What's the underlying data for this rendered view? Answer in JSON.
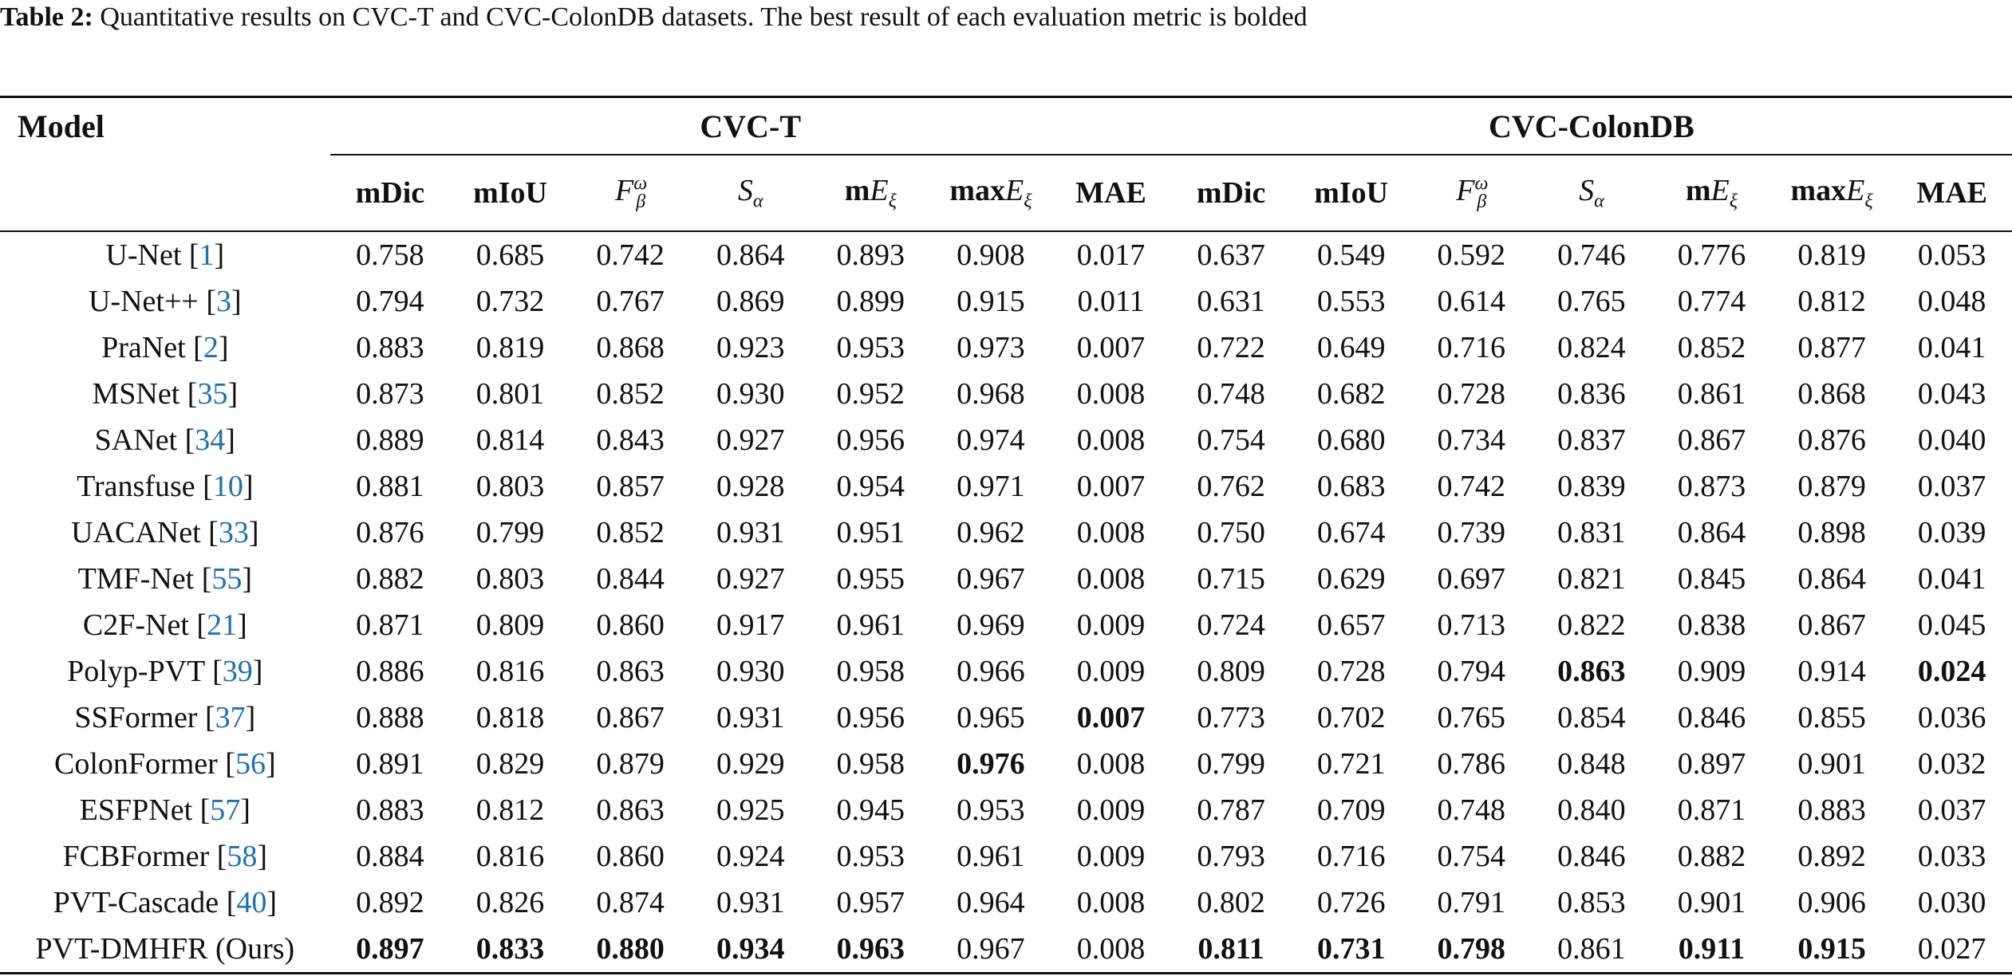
{
  "caption": {
    "label": "Table 2:",
    "text": "Quantitative results on CVC-T and CVC-ColonDB datasets. The best result of each evaluation metric is bolded"
  },
  "header": {
    "model": "Model",
    "group_a": "CVC-T",
    "group_b": "CVC-ColonDB",
    "metrics": [
      "mDic",
      "mIoU",
      "F_β^ω",
      "S_α",
      "mE_ξ",
      "maxE_ξ",
      "MAE"
    ]
  },
  "rows": [
    {
      "name": "U-Net",
      "ref": "1",
      "values": [
        "0.758",
        "0.685",
        "0.742",
        "0.864",
        "0.893",
        "0.908",
        "0.017",
        "0.637",
        "0.549",
        "0.592",
        "0.746",
        "0.776",
        "0.819",
        "0.053"
      ],
      "bold": []
    },
    {
      "name": "U-Net++",
      "ref": "3",
      "values": [
        "0.794",
        "0.732",
        "0.767",
        "0.869",
        "0.899",
        "0.915",
        "0.011",
        "0.631",
        "0.553",
        "0.614",
        "0.765",
        "0.774",
        "0.812",
        "0.048"
      ],
      "bold": []
    },
    {
      "name": "PraNet",
      "ref": "2",
      "values": [
        "0.883",
        "0.819",
        "0.868",
        "0.923",
        "0.953",
        "0.973",
        "0.007",
        "0.722",
        "0.649",
        "0.716",
        "0.824",
        "0.852",
        "0.877",
        "0.041"
      ],
      "bold": []
    },
    {
      "name": "MSNet",
      "ref": "35",
      "values": [
        "0.873",
        "0.801",
        "0.852",
        "0.930",
        "0.952",
        "0.968",
        "0.008",
        "0.748",
        "0.682",
        "0.728",
        "0.836",
        "0.861",
        "0.868",
        "0.043"
      ],
      "bold": []
    },
    {
      "name": "SANet",
      "ref": "34",
      "values": [
        "0.889",
        "0.814",
        "0.843",
        "0.927",
        "0.956",
        "0.974",
        "0.008",
        "0.754",
        "0.680",
        "0.734",
        "0.837",
        "0.867",
        "0.876",
        "0.040"
      ],
      "bold": []
    },
    {
      "name": "Transfuse",
      "ref": "10",
      "values": [
        "0.881",
        "0.803",
        "0.857",
        "0.928",
        "0.954",
        "0.971",
        "0.007",
        "0.762",
        "0.683",
        "0.742",
        "0.839",
        "0.873",
        "0.879",
        "0.037"
      ],
      "bold": []
    },
    {
      "name": "UACANet",
      "ref": "33",
      "values": [
        "0.876",
        "0.799",
        "0.852",
        "0.931",
        "0.951",
        "0.962",
        "0.008",
        "0.750",
        "0.674",
        "0.739",
        "0.831",
        "0.864",
        "0.898",
        "0.039"
      ],
      "bold": []
    },
    {
      "name": "TMF-Net",
      "ref": "55",
      "values": [
        "0.882",
        "0.803",
        "0.844",
        "0.927",
        "0.955",
        "0.967",
        "0.008",
        "0.715",
        "0.629",
        "0.697",
        "0.821",
        "0.845",
        "0.864",
        "0.041"
      ],
      "bold": []
    },
    {
      "name": "C2F-Net",
      "ref": "21",
      "values": [
        "0.871",
        "0.809",
        "0.860",
        "0.917",
        "0.961",
        "0.969",
        "0.009",
        "0.724",
        "0.657",
        "0.713",
        "0.822",
        "0.838",
        "0.867",
        "0.045"
      ],
      "bold": []
    },
    {
      "name": "Polyp-PVT",
      "ref": "39",
      "values": [
        "0.886",
        "0.816",
        "0.863",
        "0.930",
        "0.958",
        "0.966",
        "0.009",
        "0.809",
        "0.728",
        "0.794",
        "0.863",
        "0.909",
        "0.914",
        "0.024"
      ],
      "bold": [
        10,
        13
      ]
    },
    {
      "name": "SSFormer",
      "ref": "37",
      "values": [
        "0.888",
        "0.818",
        "0.867",
        "0.931",
        "0.956",
        "0.965",
        "0.007",
        "0.773",
        "0.702",
        "0.765",
        "0.854",
        "0.846",
        "0.855",
        "0.036"
      ],
      "bold": [
        6
      ]
    },
    {
      "name": "ColonFormer",
      "ref": "56",
      "values": [
        "0.891",
        "0.829",
        "0.879",
        "0.929",
        "0.958",
        "0.976",
        "0.008",
        "0.799",
        "0.721",
        "0.786",
        "0.848",
        "0.897",
        "0.901",
        "0.032"
      ],
      "bold": [
        5
      ]
    },
    {
      "name": "ESFPNet",
      "ref": "57",
      "values": [
        "0.883",
        "0.812",
        "0.863",
        "0.925",
        "0.945",
        "0.953",
        "0.009",
        "0.787",
        "0.709",
        "0.748",
        "0.840",
        "0.871",
        "0.883",
        "0.037"
      ],
      "bold": []
    },
    {
      "name": "FCBFormer",
      "ref": "58",
      "values": [
        "0.884",
        "0.816",
        "0.860",
        "0.924",
        "0.953",
        "0.961",
        "0.009",
        "0.793",
        "0.716",
        "0.754",
        "0.846",
        "0.882",
        "0.892",
        "0.033"
      ],
      "bold": []
    },
    {
      "name": "PVT-Cascade",
      "ref": "40",
      "values": [
        "0.892",
        "0.826",
        "0.874",
        "0.931",
        "0.957",
        "0.964",
        "0.008",
        "0.802",
        "0.726",
        "0.791",
        "0.853",
        "0.901",
        "0.906",
        "0.030"
      ],
      "bold": []
    },
    {
      "name": "PVT-DMHFR (Ours)",
      "ref": "",
      "values": [
        "0.897",
        "0.833",
        "0.880",
        "0.934",
        "0.963",
        "0.967",
        "0.008",
        "0.811",
        "0.731",
        "0.798",
        "0.861",
        "0.911",
        "0.915",
        "0.027"
      ],
      "bold": [
        0,
        1,
        2,
        3,
        4,
        7,
        8,
        9,
        11,
        12
      ]
    }
  ]
}
